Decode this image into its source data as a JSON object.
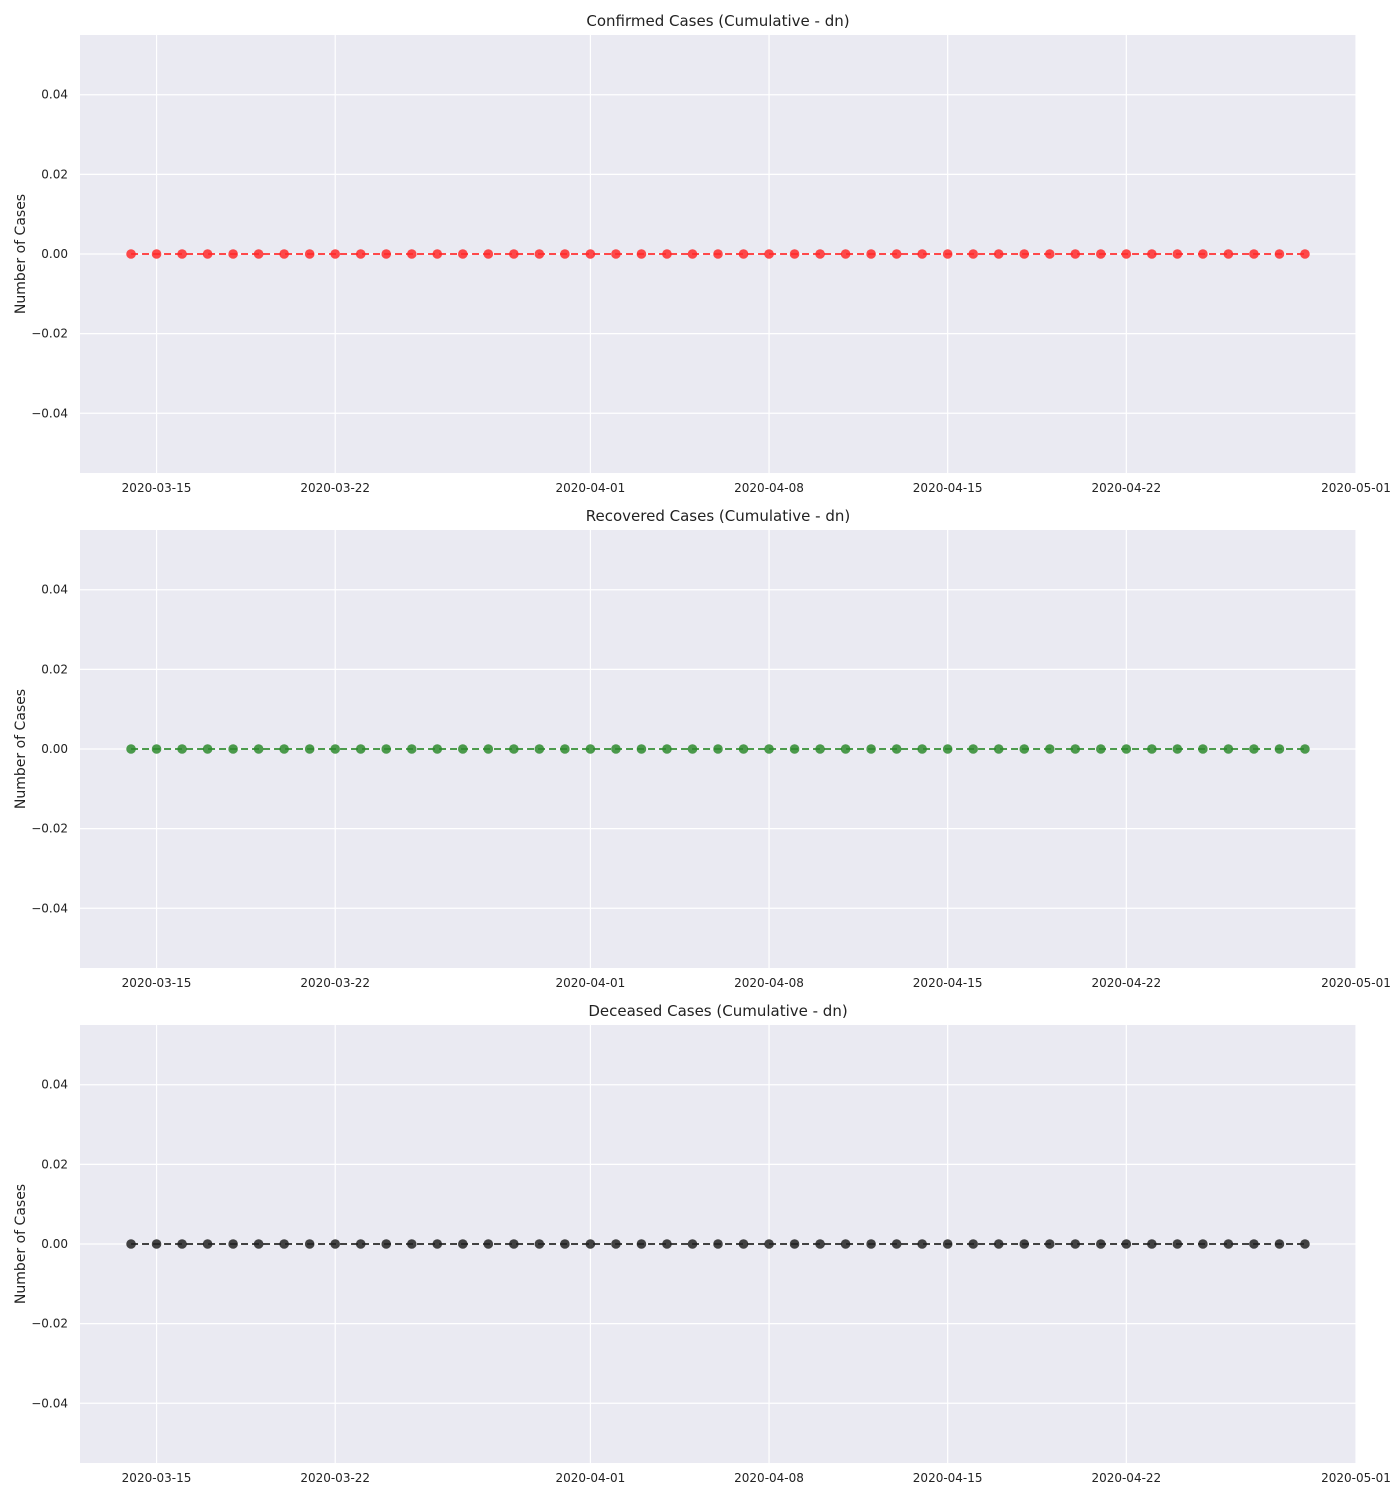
{
  "chart_data": [
    {
      "type": "line",
      "title": "Confirmed Cases (Cumulative - dn)",
      "xlabel": "",
      "ylabel": "Number of Cases",
      "color": "#ff2a2a",
      "line_style": "dashed",
      "marker": "circle",
      "x_start": "2020-03-14",
      "x_end": "2020-04-29",
      "xlim": [
        "2020-03-12",
        "2020-05-01"
      ],
      "ylim": [
        -0.055,
        0.055
      ],
      "x_ticks": [
        "2020-03-15",
        "2020-03-22",
        "2020-04-01",
        "2020-04-08",
        "2020-04-15",
        "2020-04-22",
        "2020-05-01"
      ],
      "y_ticks": [
        0.04,
        0.02,
        0.0,
        -0.02,
        -0.04
      ],
      "y_tick_labels": [
        "0.04",
        "0.02",
        "0.00",
        "−0.02",
        "−0.04"
      ],
      "value": 0,
      "grid": true,
      "legend": "none"
    },
    {
      "type": "line",
      "title": "Recovered Cases (Cumulative - dn)",
      "xlabel": "",
      "ylabel": "Number of Cases",
      "color": "#2e8b2e",
      "line_style": "dashed",
      "marker": "circle",
      "x_start": "2020-03-14",
      "x_end": "2020-04-29",
      "xlim": [
        "2020-03-12",
        "2020-05-01"
      ],
      "ylim": [
        -0.055,
        0.055
      ],
      "x_ticks": [
        "2020-03-15",
        "2020-03-22",
        "2020-04-01",
        "2020-04-08",
        "2020-04-15",
        "2020-04-22",
        "2020-05-01"
      ],
      "y_ticks": [
        0.04,
        0.02,
        0.0,
        -0.02,
        -0.04
      ],
      "y_tick_labels": [
        "0.04",
        "0.02",
        "0.00",
        "−0.02",
        "−0.04"
      ],
      "value": 0,
      "grid": true,
      "legend": "none"
    },
    {
      "type": "line",
      "title": "Deceased Cases (Cumulative - dn)",
      "xlabel": "",
      "ylabel": "Number of Cases",
      "color": "#222222",
      "line_style": "dashed",
      "marker": "circle",
      "x_start": "2020-03-14",
      "x_end": "2020-04-29",
      "xlim": [
        "2020-03-12",
        "2020-05-01"
      ],
      "ylim": [
        -0.055,
        0.055
      ],
      "x_ticks": [
        "2020-03-15",
        "2020-03-22",
        "2020-04-01",
        "2020-04-08",
        "2020-04-15",
        "2020-04-22",
        "2020-05-01"
      ],
      "y_ticks": [
        0.04,
        0.02,
        0.0,
        -0.02,
        -0.04
      ],
      "y_tick_labels": [
        "0.04",
        "0.02",
        "0.00",
        "−0.02",
        "−0.04"
      ],
      "value": 0,
      "grid": true,
      "legend": "none"
    }
  ]
}
